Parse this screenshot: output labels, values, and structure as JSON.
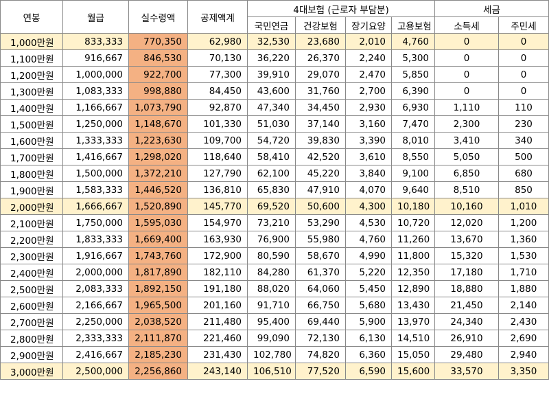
{
  "colors": {
    "net_highlight": "#f4b183",
    "row_highlight": "#fff2cc",
    "border": "#888888"
  },
  "header": {
    "annual": "연봉",
    "monthly": "월급",
    "net": "실수령액",
    "deductions": "공제액계",
    "insurance_group": "4대보험 (근로자 부담분)",
    "pension": "국민연금",
    "health": "건강보험",
    "longterm_care": "장기요양",
    "employment": "고용보험",
    "tax_group": "세금",
    "income_tax": "소득세",
    "resident_tax": "주민세"
  },
  "rows": [
    {
      "annual": "1,000만원",
      "monthly": "833,333",
      "net": "770,350",
      "deductions": "62,980",
      "pension": "32,530",
      "health": "23,680",
      "care": "2,010",
      "employment": "4,760",
      "income_tax": "0",
      "resident_tax": "0",
      "highlight": true
    },
    {
      "annual": "1,100만원",
      "monthly": "916,667",
      "net": "846,530",
      "deductions": "70,130",
      "pension": "36,220",
      "health": "26,370",
      "care": "2,240",
      "employment": "5,300",
      "income_tax": "0",
      "resident_tax": "0",
      "highlight": false
    },
    {
      "annual": "1,200만원",
      "monthly": "1,000,000",
      "net": "922,700",
      "deductions": "77,300",
      "pension": "39,910",
      "health": "29,070",
      "care": "2,470",
      "employment": "5,850",
      "income_tax": "0",
      "resident_tax": "0",
      "highlight": false
    },
    {
      "annual": "1,300만원",
      "monthly": "1,083,333",
      "net": "998,880",
      "deductions": "84,450",
      "pension": "43,600",
      "health": "31,760",
      "care": "2,700",
      "employment": "6,390",
      "income_tax": "0",
      "resident_tax": "0",
      "highlight": false
    },
    {
      "annual": "1,400만원",
      "monthly": "1,166,667",
      "net": "1,073,790",
      "deductions": "92,870",
      "pension": "47,340",
      "health": "34,450",
      "care": "2,930",
      "employment": "6,930",
      "income_tax": "1,110",
      "resident_tax": "110",
      "highlight": false
    },
    {
      "annual": "1,500만원",
      "monthly": "1,250,000",
      "net": "1,148,670",
      "deductions": "101,330",
      "pension": "51,030",
      "health": "37,140",
      "care": "3,160",
      "employment": "7,470",
      "income_tax": "2,300",
      "resident_tax": "230",
      "highlight": false
    },
    {
      "annual": "1,600만원",
      "monthly": "1,333,333",
      "net": "1,223,630",
      "deductions": "109,700",
      "pension": "54,720",
      "health": "39,830",
      "care": "3,390",
      "employment": "8,010",
      "income_tax": "3,410",
      "resident_tax": "340",
      "highlight": false
    },
    {
      "annual": "1,700만원",
      "monthly": "1,416,667",
      "net": "1,298,020",
      "deductions": "118,640",
      "pension": "58,410",
      "health": "42,520",
      "care": "3,610",
      "employment": "8,550",
      "income_tax": "5,050",
      "resident_tax": "500",
      "highlight": false
    },
    {
      "annual": "1,800만원",
      "monthly": "1,500,000",
      "net": "1,372,210",
      "deductions": "127,790",
      "pension": "62,100",
      "health": "45,220",
      "care": "3,840",
      "employment": "9,100",
      "income_tax": "6,850",
      "resident_tax": "680",
      "highlight": false
    },
    {
      "annual": "1,900만원",
      "monthly": "1,583,333",
      "net": "1,446,520",
      "deductions": "136,810",
      "pension": "65,830",
      "health": "47,910",
      "care": "4,070",
      "employment": "9,640",
      "income_tax": "8,510",
      "resident_tax": "850",
      "highlight": false
    },
    {
      "annual": "2,000만원",
      "monthly": "1,666,667",
      "net": "1,520,890",
      "deductions": "145,770",
      "pension": "69,520",
      "health": "50,600",
      "care": "4,300",
      "employment": "10,180",
      "income_tax": "10,160",
      "resident_tax": "1,010",
      "highlight": true
    },
    {
      "annual": "2,100만원",
      "monthly": "1,750,000",
      "net": "1,595,030",
      "deductions": "154,970",
      "pension": "73,210",
      "health": "53,290",
      "care": "4,530",
      "employment": "10,720",
      "income_tax": "12,020",
      "resident_tax": "1,200",
      "highlight": false
    },
    {
      "annual": "2,200만원",
      "monthly": "1,833,333",
      "net": "1,669,400",
      "deductions": "163,930",
      "pension": "76,900",
      "health": "55,980",
      "care": "4,760",
      "employment": "11,260",
      "income_tax": "13,670",
      "resident_tax": "1,360",
      "highlight": false
    },
    {
      "annual": "2,300만원",
      "monthly": "1,916,667",
      "net": "1,743,760",
      "deductions": "172,900",
      "pension": "80,590",
      "health": "58,670",
      "care": "4,990",
      "employment": "11,800",
      "income_tax": "15,320",
      "resident_tax": "1,530",
      "highlight": false
    },
    {
      "annual": "2,400만원",
      "monthly": "2,000,000",
      "net": "1,817,890",
      "deductions": "182,110",
      "pension": "84,280",
      "health": "61,370",
      "care": "5,220",
      "employment": "12,350",
      "income_tax": "17,180",
      "resident_tax": "1,710",
      "highlight": false
    },
    {
      "annual": "2,500만원",
      "monthly": "2,083,333",
      "net": "1,892,150",
      "deductions": "191,180",
      "pension": "88,020",
      "health": "64,060",
      "care": "5,450",
      "employment": "12,890",
      "income_tax": "18,880",
      "resident_tax": "1,880",
      "highlight": false
    },
    {
      "annual": "2,600만원",
      "monthly": "2,166,667",
      "net": "1,965,500",
      "deductions": "201,160",
      "pension": "91,710",
      "health": "66,750",
      "care": "5,680",
      "employment": "13,430",
      "income_tax": "21,450",
      "resident_tax": "2,140",
      "highlight": false
    },
    {
      "annual": "2,700만원",
      "monthly": "2,250,000",
      "net": "2,038,520",
      "deductions": "211,480",
      "pension": "95,400",
      "health": "69,440",
      "care": "5,900",
      "employment": "13,970",
      "income_tax": "24,340",
      "resident_tax": "2,430",
      "highlight": false
    },
    {
      "annual": "2,800만원",
      "monthly": "2,333,333",
      "net": "2,111,870",
      "deductions": "221,460",
      "pension": "99,090",
      "health": "72,130",
      "care": "6,130",
      "employment": "14,510",
      "income_tax": "26,910",
      "resident_tax": "2,690",
      "highlight": false
    },
    {
      "annual": "2,900만원",
      "monthly": "2,416,667",
      "net": "2,185,230",
      "deductions": "231,430",
      "pension": "102,780",
      "health": "74,820",
      "care": "6,360",
      "employment": "15,050",
      "income_tax": "29,480",
      "resident_tax": "2,940",
      "highlight": false
    },
    {
      "annual": "3,000만원",
      "monthly": "2,500,000",
      "net": "2,256,860",
      "deductions": "243,140",
      "pension": "106,510",
      "health": "77,520",
      "care": "6,590",
      "employment": "15,600",
      "income_tax": "33,570",
      "resident_tax": "3,350",
      "highlight": true
    }
  ]
}
